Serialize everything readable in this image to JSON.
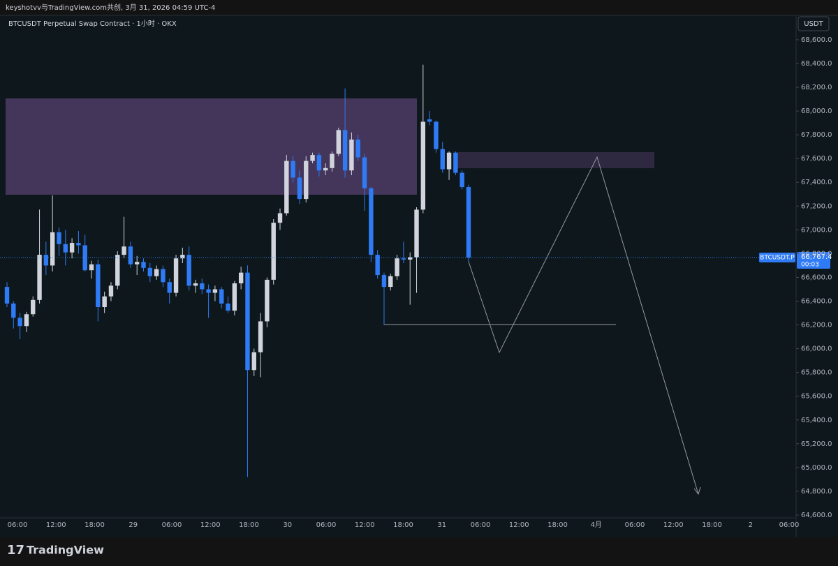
{
  "chart_data": {
    "type": "candlestick",
    "header": "keyshotvv与TradingView.com共创, 3月 31, 2026 04:59 UTC-4",
    "title": "BTCUSDT Perpetual Swap Contract · 1小时 · OKX",
    "currency": "USDT",
    "symbol_tag": "BTCUSDT.P",
    "brand": "TradingView",
    "last_price": {
      "value": 66767.4,
      "label": "66,767.4"
    },
    "countdown": "00:03",
    "up_color": "#d1d4dc",
    "down_color": "#2f7bf5",
    "open": [
      66520,
      66380,
      66260,
      66190,
      66290,
      66410,
      66790,
      66700,
      66980,
      66880,
      66810,
      66890,
      66870,
      66660,
      66710,
      66350,
      66440,
      66530,
      66790,
      66860,
      66710,
      66730,
      66680,
      66610,
      66670,
      66560,
      66470,
      66760,
      66790,
      66530,
      66550,
      66500,
      66470,
      66500,
      66380,
      66320,
      66550,
      66640,
      65820,
      65970,
      66230,
      66580,
      67060,
      67140,
      67580,
      67440,
      67260,
      67580,
      67630,
      67500,
      67520,
      67640,
      67840,
      67500,
      67760,
      67610,
      67350,
      66790,
      66620,
      66520,
      66610,
      66760,
      66750,
      66770,
      67170,
      67930,
      67910,
      67680,
      67510,
      67650,
      67480,
      67360
    ],
    "high": [
      66560,
      66400,
      66300,
      66310,
      66440,
      67170,
      66900,
      67290,
      67020,
      67000,
      66930,
      66990,
      66960,
      66740,
      66750,
      66480,
      66560,
      66820,
      67110,
      66900,
      66780,
      66760,
      66720,
      66700,
      66700,
      66590,
      66790,
      66850,
      66860,
      66580,
      66590,
      66540,
      66530,
      66520,
      66440,
      66570,
      66690,
      66700,
      66000,
      66300,
      66600,
      67090,
      67180,
      67630,
      67620,
      67500,
      67620,
      67650,
      67650,
      67560,
      67660,
      67860,
      68190,
      67820,
      67800,
      67640,
      67360,
      66830,
      66640,
      66630,
      66790,
      66900,
      66810,
      67190,
      68390,
      68000,
      67920,
      67740,
      67660,
      67660,
      67500,
      67380
    ],
    "low": [
      66350,
      66170,
      66080,
      66140,
      66270,
      66380,
      66620,
      66650,
      66780,
      66700,
      66760,
      66800,
      66650,
      66590,
      66230,
      66300,
      66400,
      66500,
      66760,
      66680,
      66620,
      66650,
      66560,
      66580,
      66520,
      66380,
      66440,
      66720,
      66490,
      66470,
      66460,
      66260,
      66400,
      66340,
      66300,
      66280,
      66500,
      64920,
      65770,
      65760,
      66180,
      66540,
      67000,
      67120,
      67400,
      67220,
      67230,
      67560,
      67450,
      67460,
      67490,
      67620,
      67440,
      67460,
      67580,
      67160,
      66730,
      66590,
      66200,
      66490,
      66580,
      66720,
      66370,
      66470,
      67140,
      67880,
      67650,
      67480,
      67420,
      67460,
      67340,
      66730
    ],
    "close": [
      66380,
      66260,
      66190,
      66290,
      66410,
      66790,
      66700,
      66980,
      66880,
      66810,
      66890,
      66870,
      66660,
      66710,
      66350,
      66440,
      66530,
      66790,
      66860,
      66710,
      66730,
      66680,
      66610,
      66670,
      66560,
      66470,
      66760,
      66790,
      66530,
      66550,
      66500,
      66470,
      66500,
      66380,
      66320,
      66550,
      66640,
      65820,
      65970,
      66230,
      66580,
      67060,
      67140,
      67580,
      67440,
      67260,
      67580,
      67630,
      67500,
      67520,
      67640,
      67840,
      67500,
      67760,
      67610,
      67350,
      66790,
      66620,
      66520,
      66610,
      66760,
      66750,
      66770,
      67170,
      67910,
      67910,
      67680,
      67510,
      67650,
      67480,
      67360,
      66767.4
    ],
    "x_labels": [
      "06:00",
      "12:00",
      "18:00",
      "29",
      "06:00",
      "12:00",
      "18:00",
      "30",
      "06:00",
      "12:00",
      "18:00",
      "31",
      "06:00",
      "12:00",
      "18:00",
      "4月",
      "06:00",
      "12:00",
      "18:00",
      "2",
      "06:00"
    ],
    "ylim": [
      64588,
      68770
    ],
    "yticks": [
      {
        "value": 68600,
        "label": "68,600.0"
      },
      {
        "value": 68400,
        "label": "68,400.0"
      },
      {
        "value": 68200,
        "label": "68,200.0"
      },
      {
        "value": 68000,
        "label": "68,000.0"
      },
      {
        "value": 67800,
        "label": "67,800.0"
      },
      {
        "value": 67600,
        "label": "67,600.0"
      },
      {
        "value": 67400,
        "label": "67,400.0"
      },
      {
        "value": 67200,
        "label": "67,200.0"
      },
      {
        "value": 67000,
        "label": "67,000.0"
      },
      {
        "value": 66800,
        "label": "66,800.0"
      },
      {
        "value": 66600,
        "label": "66,600.0"
      },
      {
        "value": 66400,
        "label": "66,400.0"
      },
      {
        "value": 66200,
        "label": "66,200.0"
      },
      {
        "value": 66000,
        "label": "66,000.0"
      },
      {
        "value": 65800,
        "label": "65,800.0"
      },
      {
        "value": 65600,
        "label": "65,600.0"
      },
      {
        "value": 65400,
        "label": "65,400.0"
      },
      {
        "value": 65200,
        "label": "65,200.0"
      },
      {
        "value": 65000,
        "label": "65,000.0"
      },
      {
        "value": 64800,
        "label": "64,800.0"
      },
      {
        "value": 64600,
        "label": "64,600.0"
      }
    ]
  }
}
